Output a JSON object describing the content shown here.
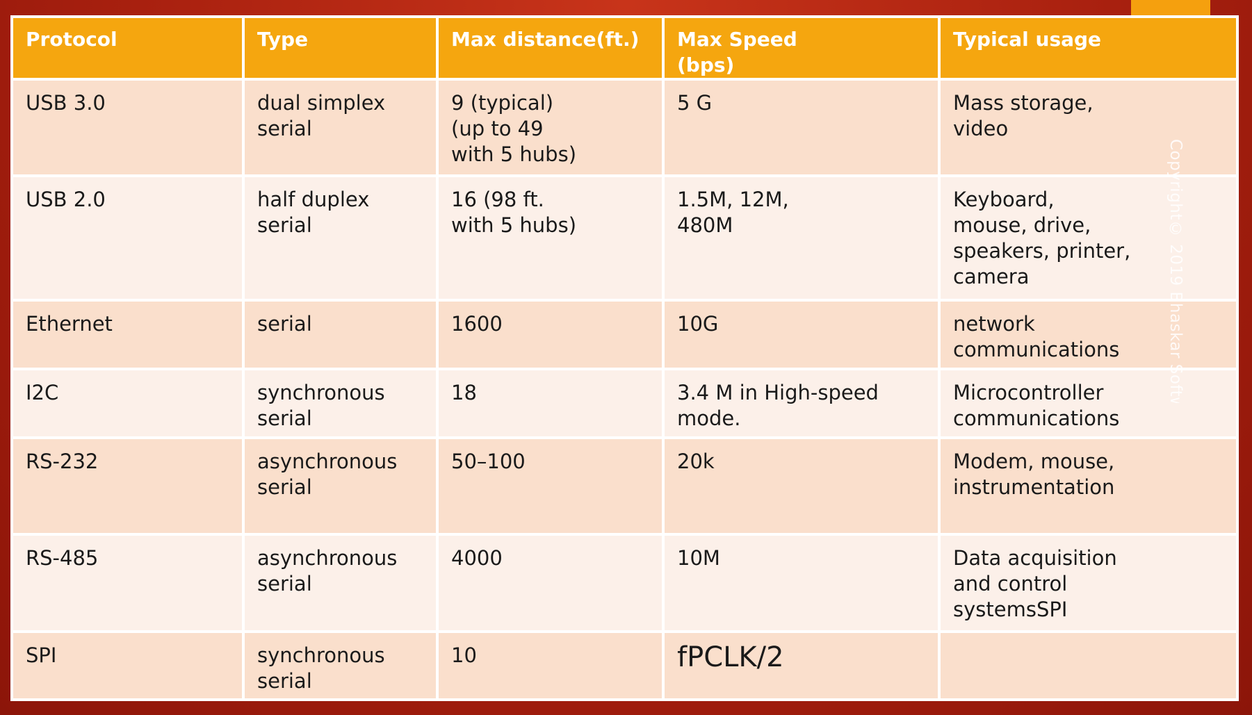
{
  "table": {
    "headers": [
      "Protocol",
      "Type",
      "Max distance(ft.)",
      "Max Speed\n(bps)",
      "Typical usage"
    ],
    "rows": [
      [
        "USB 3.0",
        "dual simplex\nserial",
        "9 (typical)\n(up to 49\nwith 5 hubs)",
        "5 G",
        "Mass storage,\nvideo"
      ],
      [
        "USB 2.0",
        "half duplex\nserial",
        "16 (98 ft.\nwith 5 hubs)",
        "1.5M, 12M,\n480M",
        "Keyboard,\nmouse, drive,\nspeakers, printer,\ncamera"
      ],
      [
        "Ethernet",
        "serial",
        "1600",
        "10G",
        "network\ncommunications"
      ],
      [
        "I2C",
        "synchronous\nserial",
        "18",
        "3.4 M  in  High-speed\nmode.",
        "Microcontroller\ncommunications"
      ],
      [
        "RS-232",
        "asynchronous\nserial",
        "50–100",
        "20k",
        "Modem, mouse,\ninstrumentation"
      ],
      [
        "RS-485",
        "asynchronous\nserial",
        "4000",
        "10M",
        "Data acquisition\nand control\nsystemsSPI"
      ],
      [
        "SPI",
        "synchronous\nserial",
        "10",
        "fPCLK/2",
        ""
      ]
    ]
  },
  "watermark": "Copyright© 2019 Bhaskar Software",
  "colors": {
    "header_bg": "#f5a60f",
    "row_odd_bg": "#fadfcc",
    "row_even_bg": "#fcf0e9",
    "background": "#a8200f"
  }
}
